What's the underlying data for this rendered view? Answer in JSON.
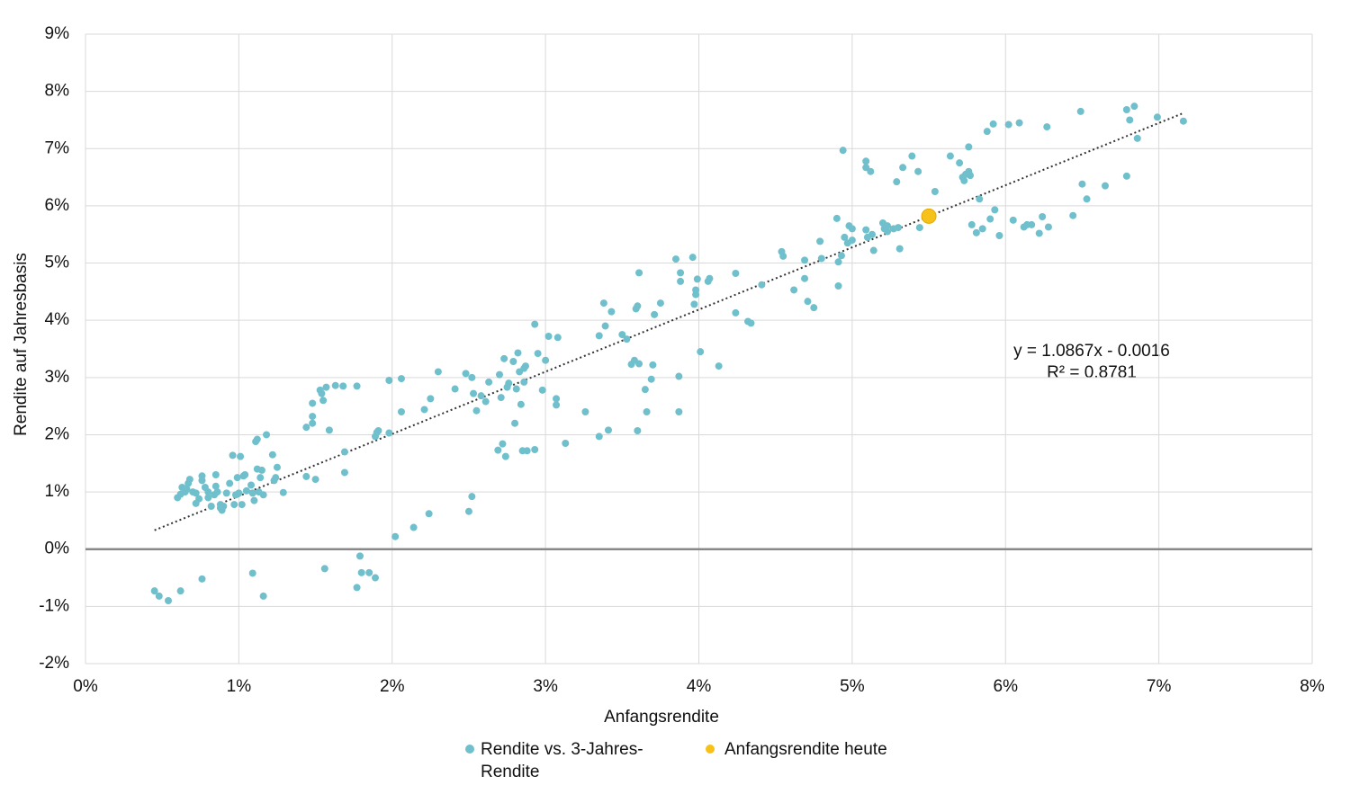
{
  "chart_data": [
    {
      "type": "scatter",
      "x_label": "Anfangsrendite",
      "y_label": "Rendite auf Jahresbasis",
      "xlim": [
        0,
        8
      ],
      "ylim": [
        -2,
        9
      ],
      "xticks": [
        {
          "value": 0,
          "label": "0%"
        },
        {
          "value": 1,
          "label": "1%"
        },
        {
          "value": 2,
          "label": "2%"
        },
        {
          "value": 3,
          "label": "3%"
        },
        {
          "value": 4,
          "label": "4%"
        },
        {
          "value": 5,
          "label": "5%"
        },
        {
          "value": 6,
          "label": "6%"
        },
        {
          "value": 7,
          "label": "7%"
        },
        {
          "value": 8,
          "label": "8%"
        }
      ],
      "yticks": [
        {
          "value": -2,
          "label": "-2%"
        },
        {
          "value": -1,
          "label": "-1%"
        },
        {
          "value": 0,
          "label": "0%"
        },
        {
          "value": 1,
          "label": "1%"
        },
        {
          "value": 2,
          "label": "2%"
        },
        {
          "value": 3,
          "label": "3%"
        },
        {
          "value": 4,
          "label": "4%"
        },
        {
          "value": 5,
          "label": "5%"
        },
        {
          "value": 6,
          "label": "6%"
        },
        {
          "value": 7,
          "label": "7%"
        },
        {
          "value": 8,
          "label": "8%"
        },
        {
          "value": 9,
          "label": "9%"
        }
      ],
      "grid": true,
      "series": [
        {
          "name": "Rendite vs. 3-Jahres-Rendite",
          "color": "#6fc0cc",
          "size": 4,
          "x": [
            0.45,
            0.48,
            0.54,
            0.62,
            0.76,
            1.09,
            1.16,
            1.56,
            1.77,
            1.79,
            1.8,
            1.85,
            1.89,
            2.02,
            2.14,
            2.24,
            2.5,
            2.52,
            0.6,
            0.62,
            0.63,
            0.65,
            0.66,
            0.67,
            0.68,
            0.7,
            0.72,
            0.72,
            0.74,
            0.76,
            0.76,
            0.78,
            0.8,
            0.8,
            0.82,
            0.84,
            0.85,
            0.85,
            0.86,
            0.88,
            0.88,
            0.89,
            0.9,
            0.92,
            0.94,
            0.96,
            0.97,
            0.98,
            0.99,
            1.0,
            1.01,
            1.02,
            1.03,
            1.04,
            1.05,
            1.08,
            1.09,
            1.1,
            1.11,
            1.12,
            1.12,
            1.13,
            1.14,
            1.15,
            1.16,
            1.18,
            1.22,
            1.23,
            1.24,
            1.25,
            1.29,
            1.44,
            1.44,
            1.48,
            1.48,
            1.48,
            1.5,
            1.53,
            1.54,
            1.55,
            1.57,
            1.59,
            1.63,
            1.68,
            1.69,
            1.69,
            1.77,
            1.89,
            1.9,
            1.91,
            1.98,
            1.98,
            2.06,
            2.06,
            2.21,
            2.25,
            2.3,
            2.41,
            2.48,
            2.52,
            2.53,
            2.55,
            2.58,
            2.61,
            2.63,
            2.69,
            2.7,
            2.71,
            2.72,
            2.73,
            2.74,
            2.75,
            2.76,
            2.79,
            2.8,
            2.81,
            2.82,
            2.83,
            2.84,
            2.85,
            2.86,
            2.86,
            2.88,
            2.87,
            2.93,
            2.93,
            2.95,
            2.98,
            3.0,
            3.02,
            3.07,
            3.07,
            3.08,
            3.13,
            3.26,
            3.35,
            3.35,
            3.38,
            3.39,
            3.41,
            3.43,
            3.5,
            3.53,
            3.56,
            3.58,
            3.59,
            3.6,
            3.6,
            3.61,
            3.61,
            3.65,
            3.66,
            3.69,
            3.7,
            3.71,
            3.75,
            3.85,
            3.87,
            3.87,
            3.88,
            3.88,
            3.96,
            3.97,
            3.98,
            3.98,
            3.99,
            4.01,
            4.06,
            4.07,
            4.13,
            4.24,
            4.24,
            4.32,
            4.34,
            4.41,
            4.54,
            4.55,
            4.62,
            4.69,
            4.69,
            4.71,
            4.75,
            4.79,
            4.8,
            4.9,
            4.91,
            4.91,
            4.93,
            4.94,
            4.95,
            4.97,
            4.98,
            5.0,
            5.0,
            5.09,
            5.09,
            5.09,
            5.1,
            5.12,
            5.13,
            5.14,
            5.2,
            5.21,
            5.23,
            5.23,
            5.27,
            5.29,
            5.3,
            5.31,
            5.33,
            5.39,
            5.43,
            5.44,
            5.54,
            5.64,
            5.7,
            5.72,
            5.73,
            5.74,
            5.76,
            5.76,
            5.77,
            5.78,
            5.81,
            5.83,
            5.85,
            5.88,
            5.9,
            5.92,
            5.93,
            5.96,
            6.02,
            6.05,
            6.09,
            6.12,
            6.14,
            6.17,
            6.22,
            6.24,
            6.28,
            6.27,
            6.44,
            6.49,
            6.5,
            6.53,
            6.65,
            6.79,
            6.79,
            6.81,
            6.84,
            6.86,
            6.99,
            7.16
          ],
          "values": [
            -0.73,
            -0.82,
            -0.9,
            -0.73,
            -0.52,
            -0.42,
            -0.82,
            -0.34,
            -0.67,
            -0.12,
            -0.41,
            -0.41,
            -0.5,
            0.22,
            0.38,
            0.62,
            0.66,
            0.92,
            0.9,
            0.96,
            1.08,
            1.0,
            1.05,
            1.15,
            1.22,
            1.0,
            0.98,
            0.8,
            0.88,
            1.28,
            1.2,
            1.08,
            0.9,
            1.0,
            0.75,
            0.95,
            1.1,
            1.3,
            1.0,
            0.72,
            0.78,
            0.68,
            0.75,
            0.98,
            1.15,
            1.64,
            0.78,
            0.95,
            1.25,
            0.98,
            1.62,
            0.78,
            1.28,
            1.3,
            1.02,
            1.12,
            0.98,
            0.85,
            1.88,
            1.92,
            1.4,
            1.0,
            1.25,
            1.38,
            0.95,
            2.0,
            1.65,
            1.2,
            1.25,
            1.43,
            0.99,
            2.13,
            1.27,
            2.55,
            2.32,
            2.2,
            1.22,
            2.78,
            2.72,
            2.6,
            2.83,
            2.08,
            2.86,
            2.85,
            1.7,
            1.34,
            2.85,
            1.97,
            2.04,
            2.07,
            2.95,
            2.03,
            2.98,
            2.4,
            2.44,
            2.63,
            3.1,
            2.8,
            3.07,
            3.0,
            2.72,
            2.42,
            2.68,
            2.58,
            2.92,
            1.73,
            3.05,
            2.65,
            1.84,
            3.33,
            1.62,
            2.83,
            2.9,
            3.28,
            2.2,
            2.8,
            3.43,
            3.1,
            2.53,
            1.72,
            3.16,
            2.92,
            1.72,
            3.2,
            3.93,
            1.74,
            3.42,
            2.78,
            3.3,
            3.72,
            2.63,
            2.52,
            3.7,
            1.85,
            2.4,
            1.97,
            3.73,
            4.3,
            3.9,
            2.08,
            4.15,
            3.75,
            3.67,
            3.23,
            3.3,
            4.2,
            2.07,
            4.25,
            3.24,
            4.83,
            2.79,
            2.4,
            2.97,
            3.22,
            4.1,
            4.3,
            5.07,
            3.02,
            2.4,
            4.68,
            4.83,
            5.1,
            4.28,
            4.53,
            4.45,
            4.72,
            3.45,
            4.68,
            4.73,
            3.2,
            4.82,
            4.13,
            3.98,
            3.95,
            4.62,
            5.2,
            5.12,
            4.53,
            5.05,
            4.73,
            4.33,
            4.22,
            5.38,
            5.08,
            5.78,
            4.6,
            5.02,
            5.13,
            6.97,
            5.45,
            5.35,
            5.65,
            5.6,
            5.4,
            5.58,
            6.78,
            6.67,
            5.45,
            6.6,
            5.5,
            5.22,
            5.7,
            5.6,
            5.65,
            5.55,
            5.6,
            6.42,
            5.62,
            5.25,
            6.67,
            6.87,
            6.6,
            5.62,
            6.25,
            6.87,
            6.75,
            6.5,
            6.44,
            6.55,
            6.6,
            7.03,
            6.53,
            5.67,
            5.53,
            6.12,
            5.6,
            7.3,
            5.77,
            7.43,
            5.93,
            5.48,
            7.42,
            5.75,
            7.45,
            5.63,
            5.67,
            5.67,
            5.52,
            5.81,
            5.63,
            7.38,
            5.83,
            7.65,
            6.38,
            6.12,
            6.35,
            6.52,
            7.68,
            7.5,
            7.74,
            7.18,
            7.55,
            7.48
          ]
        },
        {
          "name": "Anfangsrendite heute",
          "color": "#f6c21a",
          "size": 8,
          "x": [
            5.5
          ],
          "values": [
            5.82
          ]
        }
      ],
      "trendline": {
        "x": [
          0.45,
          7.15
        ],
        "values": [
          0.33,
          7.61
        ],
        "color": "#333333"
      },
      "annotations": [
        "y = 1.0867x - 0.0016",
        "R² = 0.8781"
      ]
    }
  ]
}
